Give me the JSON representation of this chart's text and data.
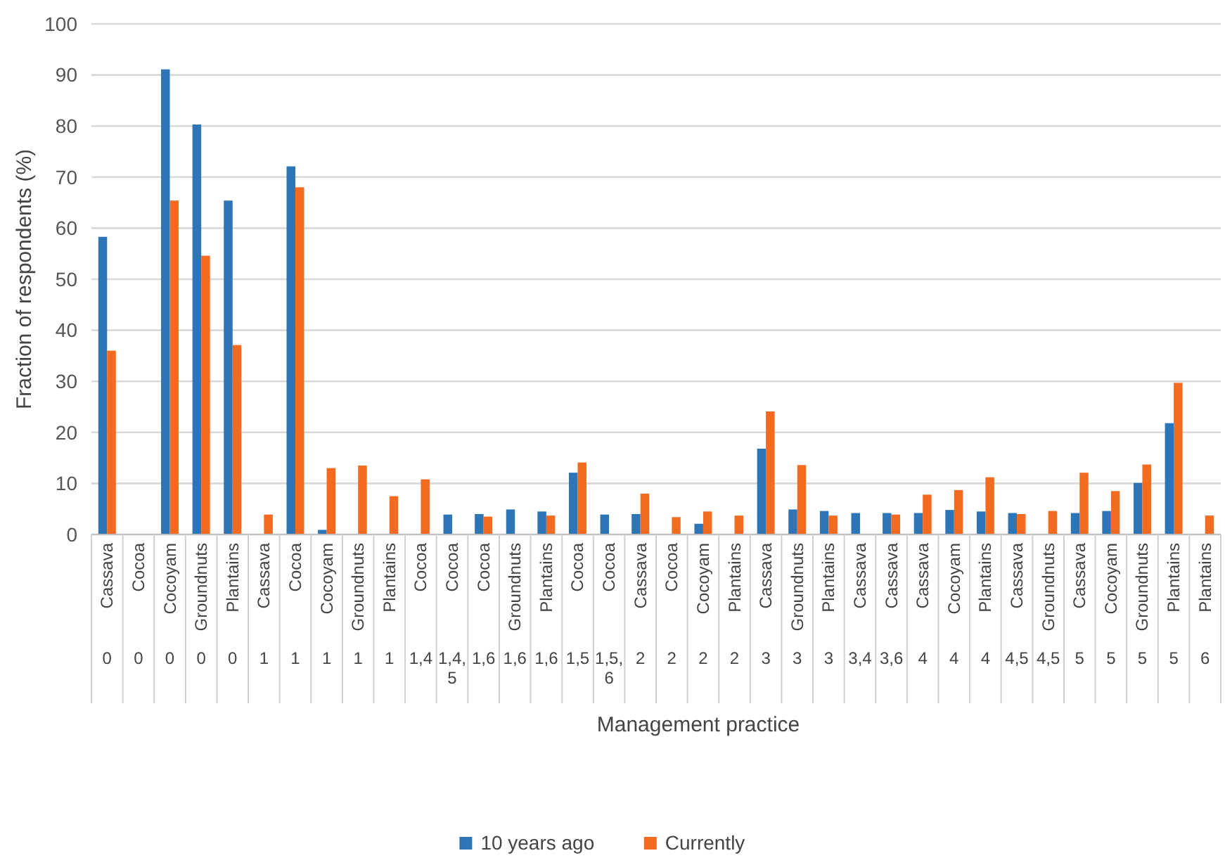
{
  "chart_data": {
    "type": "bar",
    "xlabel": "Management practice",
    "ylabel": "Fraction of respondents (%)",
    "categories": [
      "Cassava",
      "Cocoa",
      "Cocoyam",
      "Groundnuts",
      "Plantains",
      "Cassava",
      "Cocoa",
      "Cocoyam",
      "Groundnuts",
      "Plantains",
      "Cocoa",
      "Cocoa",
      "Cocoa",
      "Groundnuts",
      "Plantains",
      "Cocoa",
      "Cocoa",
      "Cassava",
      "Cocoa",
      "Cocoyam",
      "Plantains",
      "Cassava",
      "Groundnuts",
      "Plantains",
      "Cassava",
      "Cassava",
      "Cassava",
      "Cocoyam",
      "Plantains",
      "Cassava",
      "Groundnuts",
      "Cassava",
      "Cocoyam",
      "Groundnuts",
      "Plantains",
      "Plantains"
    ],
    "annotations": [
      "0",
      "0",
      "0",
      "0",
      "0",
      "1",
      "1",
      "1",
      "1",
      "1",
      "1,4",
      "1,4,5",
      "1,6",
      "1,6",
      "1,6",
      "1,5",
      "1,5,6",
      "2",
      "2",
      "2",
      "2",
      "3",
      "3",
      "3",
      "3,4",
      "3,6",
      "4",
      "4",
      "4",
      "4,5",
      "4,5",
      "5",
      "5",
      "5",
      "5",
      "6"
    ],
    "series": [
      {
        "name": "10 years ago",
        "color": "#2e75b6",
        "values": [
          58.3,
          0,
          91.1,
          80.3,
          65.4,
          0,
          72.1,
          0.9,
          0,
          0,
          0,
          3.9,
          4.0,
          4.9,
          4.5,
          12.1,
          3.9,
          4.0,
          0,
          2.1,
          0,
          16.8,
          4.9,
          4.6,
          4.2,
          4.2,
          4.2,
          4.8,
          4.5,
          4.2,
          0,
          4.2,
          4.6,
          10.1,
          21.8,
          0
        ]
      },
      {
        "name": "Currently",
        "color": "#f26b21",
        "values": [
          36.0,
          0,
          65.4,
          54.6,
          37.1,
          3.9,
          68.0,
          13.0,
          13.5,
          7.5,
          10.8,
          0,
          3.5,
          0,
          3.7,
          14.1,
          0,
          8.0,
          3.4,
          4.5,
          3.7,
          24.1,
          13.6,
          3.7,
          0,
          3.9,
          7.8,
          8.7,
          11.2,
          4.0,
          4.6,
          12.1,
          8.5,
          13.7,
          29.7,
          3.7
        ]
      }
    ],
    "ylim": [
      0,
      100
    ],
    "yticks": [
      0,
      10,
      20,
      30,
      40,
      50,
      60,
      70,
      80,
      90,
      100
    ],
    "grid": "y",
    "legend": "bottom"
  }
}
